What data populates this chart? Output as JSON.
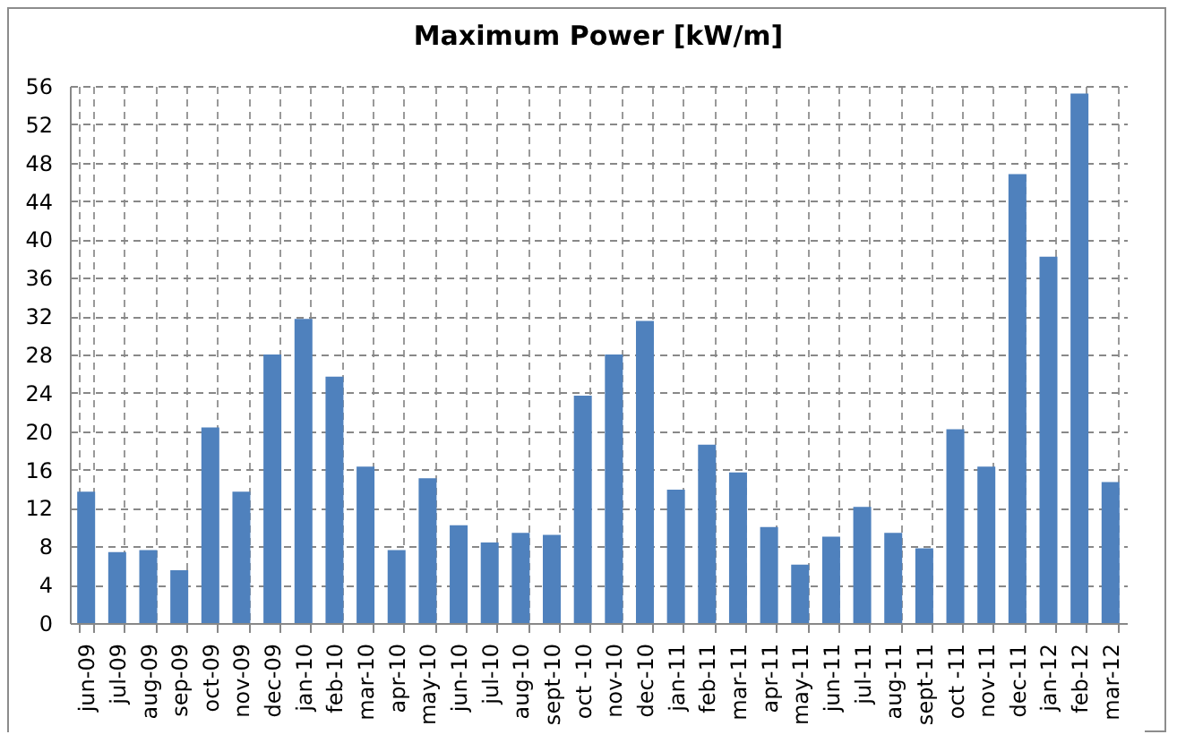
{
  "chart_data": {
    "type": "bar",
    "title": "Maximum Power [kW/m]",
    "categories": [
      "jun-09",
      "jul-09",
      "aug-09",
      "sep-09",
      "oct-09",
      "nov-09",
      "dec-09",
      "jan-10",
      "feb-10",
      "mar-10",
      "apr-10",
      "may-10",
      "jun-10",
      "jul-10",
      "aug-10",
      "sept-10",
      "oct -10",
      "nov-10",
      "dec-10",
      "jan-11",
      "feb-11",
      "mar-11",
      "apr-11",
      "may-11",
      "jun-11",
      "jul-11",
      "aug-11",
      "sept-11",
      "oct -11",
      "nov-11",
      "dec-11",
      "jan-12",
      "feb-12",
      "mar-12"
    ],
    "values": [
      13.7,
      7.4,
      7.6,
      5.5,
      20.4,
      13.7,
      28.0,
      31.7,
      25.7,
      16.3,
      7.6,
      15.1,
      10.2,
      8.4,
      9.4,
      9.2,
      23.7,
      28.0,
      31.5,
      13.9,
      18.6,
      15.7,
      10.0,
      6.1,
      9.0,
      12.1,
      9.4,
      7.8,
      20.2,
      16.3,
      46.8,
      38.2,
      55.2,
      14.7
    ],
    "color": "#4f81bd",
    "ylim": [
      0,
      56
    ],
    "yticks": [
      0,
      4,
      8,
      12,
      16,
      20,
      24,
      28,
      32,
      36,
      40,
      44,
      48,
      52,
      56
    ],
    "grid": true
  }
}
